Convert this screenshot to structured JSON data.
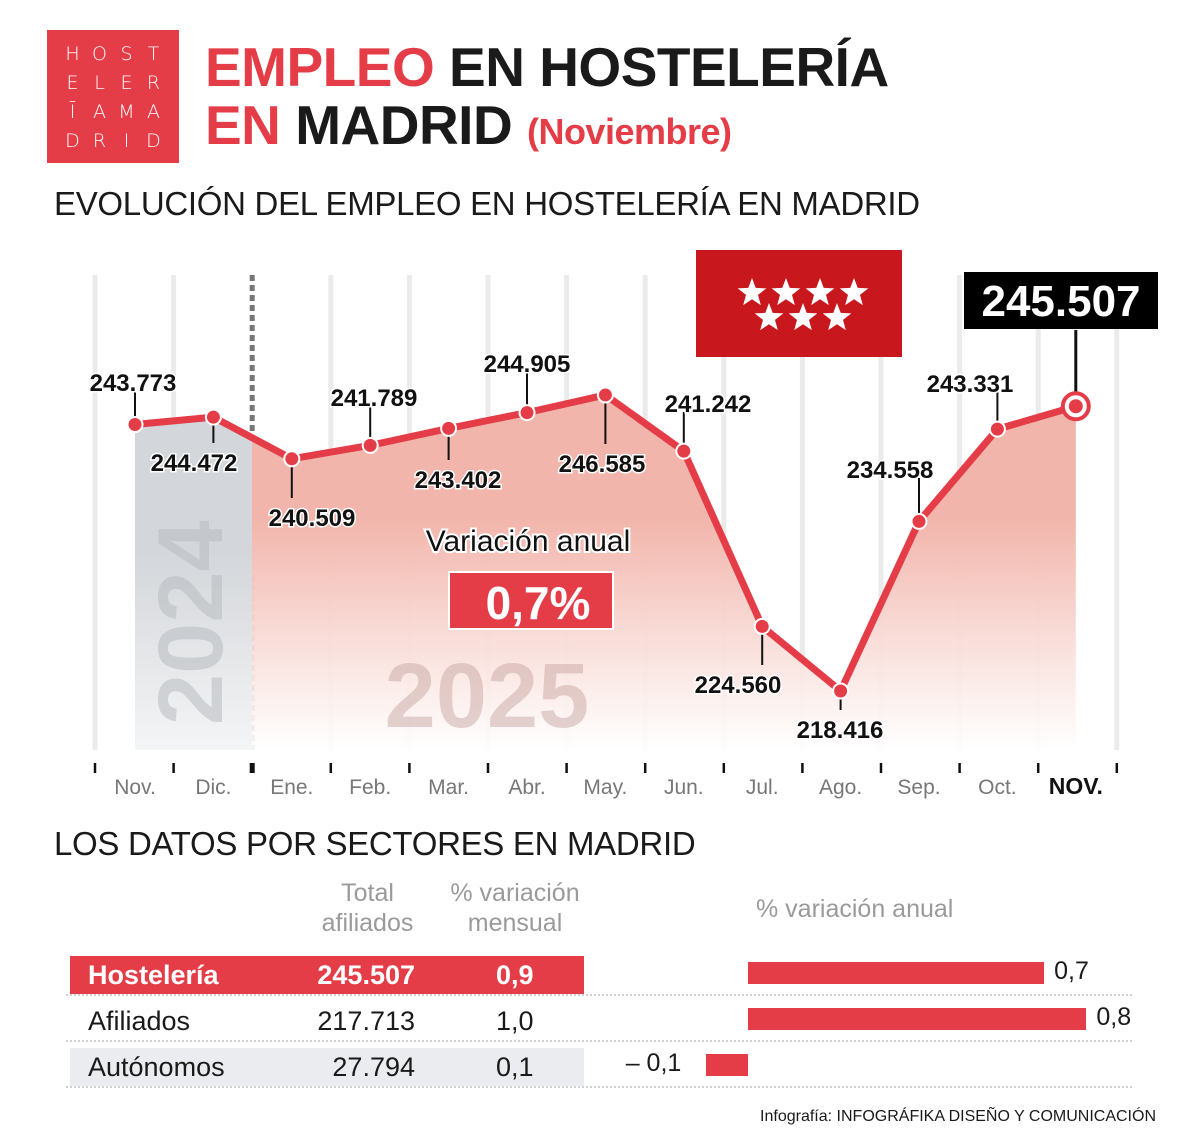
{
  "logo": {
    "letters": [
      "H",
      "O",
      "S",
      "T",
      "E",
      "L",
      "E",
      "R",
      "Ī",
      "A",
      "M",
      "A",
      "D",
      "R",
      "I",
      "D"
    ],
    "color": "#e43d47"
  },
  "header": {
    "title_red": "EMPLEO",
    "title_rest": "EN HOSTELERÍA",
    "title_line2": "EN MADRID",
    "subtitle": "(Noviembre)"
  },
  "section1_title": "EVOLUCIÓN DEL EMPLEO EN HOSTELERÍA EN MADRID",
  "flag": {
    "name": "madrid-flag",
    "color": "#c8181e",
    "stars": 7
  },
  "annual": {
    "label": "Variación anual",
    "value": "0,7%"
  },
  "year_labels": {
    "prev": "2024",
    "curr": "2025"
  },
  "chart_data": {
    "type": "area",
    "categories": [
      "Nov.",
      "Dic.",
      "Ene.",
      "Feb.",
      "Mar.",
      "Abr.",
      "May.",
      "Jun.",
      "Jul.",
      "Ago.",
      "Sep.",
      "Oct.",
      "NOV."
    ],
    "values": [
      243773,
      244472,
      240509,
      241789,
      243402,
      244905,
      246585,
      241242,
      224560,
      218416,
      234558,
      243331,
      245507
    ],
    "labels": [
      "243.773",
      "244.472",
      "240.509",
      "241.789",
      "243.402",
      "244.905",
      "246.585",
      "241.242",
      "224.560",
      "218.416",
      "234.558",
      "243.331",
      "245.507"
    ],
    "ylim": [
      212800,
      258000
    ],
    "grid": "vertical",
    "highlight_index": 12,
    "line_color": "#e43d47",
    "fill_color": "#f2b5ab",
    "prev_year_fill": "#d3d6da"
  },
  "section2_title": "LOS DATOS POR SECTORES EN MADRID",
  "table": {
    "headers": {
      "total": [
        "Total",
        "afiliados"
      ],
      "monthly": [
        "% variación",
        "mensual"
      ],
      "annual": "% variación anual"
    },
    "rows": [
      {
        "name": "Hostelería",
        "total": "245.507",
        "monthly": "0,9",
        "annual": 0.7,
        "annual_label": "0,7"
      },
      {
        "name": "Afiliados",
        "total": "217.713",
        "monthly": "1,0",
        "annual": 0.8,
        "annual_label": "0,8"
      },
      {
        "name": "Autónomos",
        "total": "27.794",
        "monthly": "0,1",
        "annual": -0.1,
        "annual_label": "– 0,1"
      }
    ]
  },
  "credit": {
    "prefix": "Infografía: ",
    "name": "INFOGRÁFIKA DISEÑO Y COMUNICACIÓN"
  }
}
